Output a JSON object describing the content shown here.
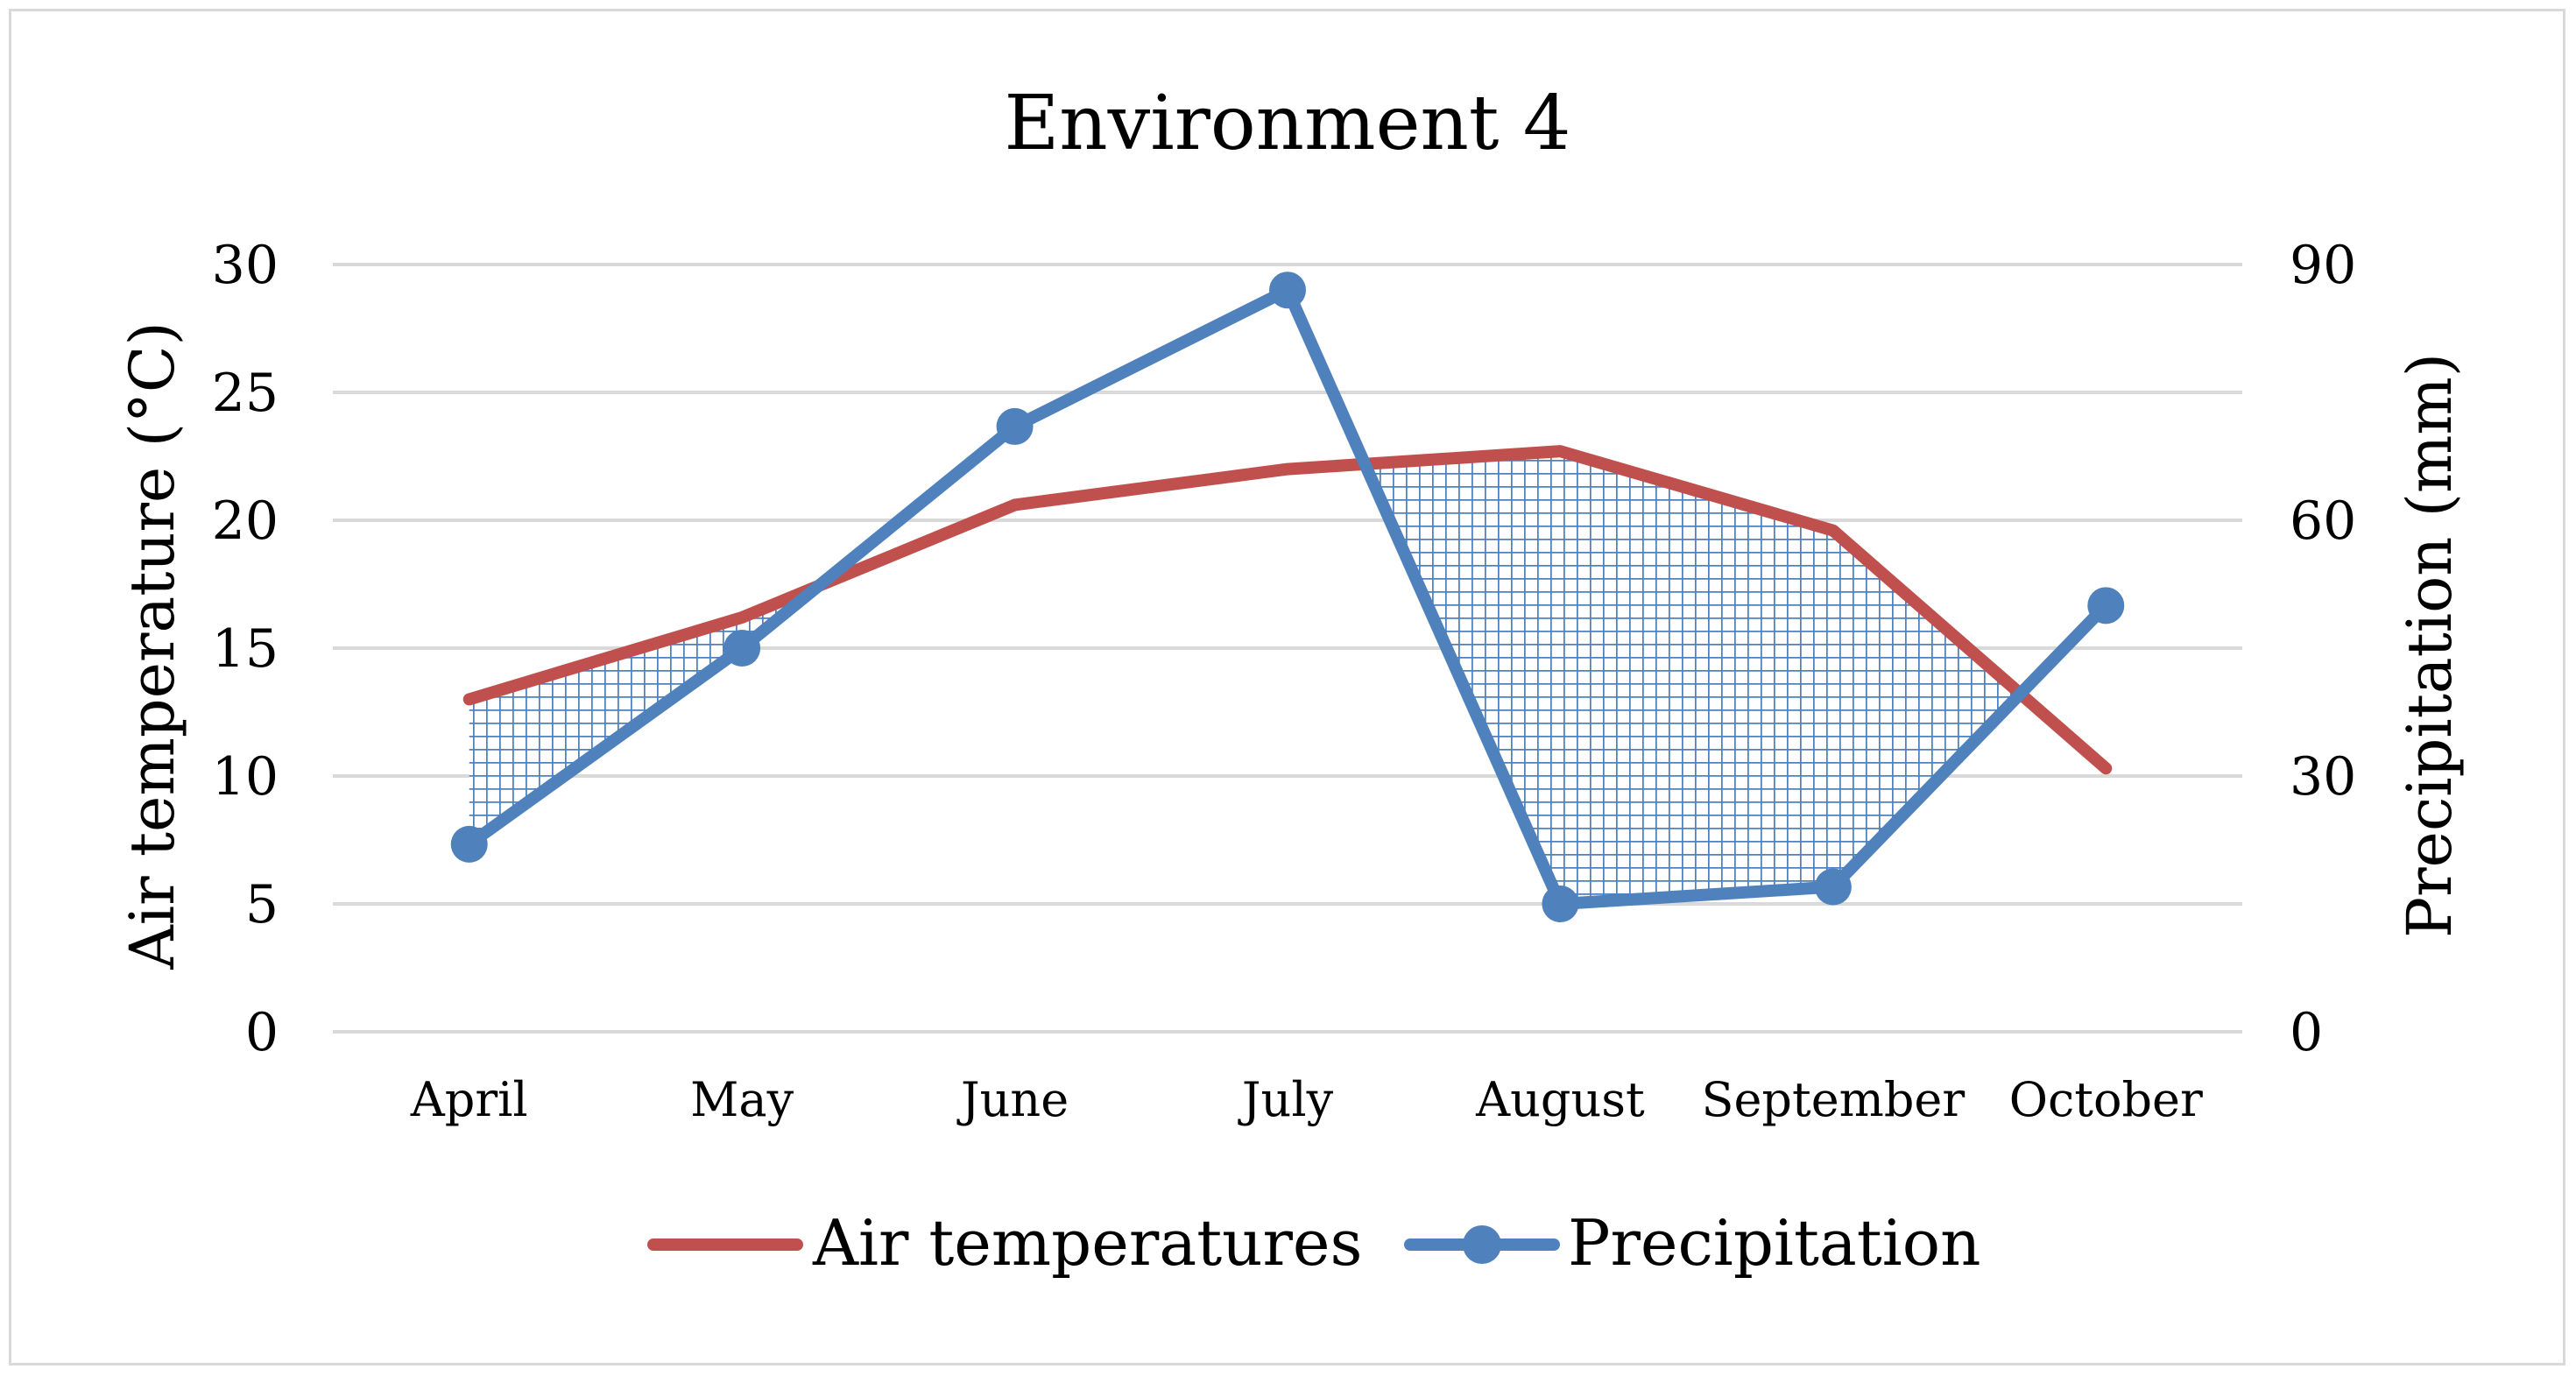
{
  "chart_data": {
    "type": "line",
    "title": "Environment 4",
    "categories": [
      "April",
      "May",
      "June",
      "July",
      "August",
      "September",
      "October"
    ],
    "y_left": {
      "label": "Air temperature (°C)",
      "lim": [
        0,
        30
      ],
      "ticks": [
        0,
        5,
        10,
        15,
        20,
        25,
        30
      ]
    },
    "y_right": {
      "label": "Precipitation (mm)",
      "lim": [
        0,
        90
      ],
      "ticks": [
        0,
        30,
        60,
        90
      ]
    },
    "grid": true,
    "legend_position": "bottom",
    "series": [
      {
        "name": "Air temperatures",
        "axis": "left",
        "color": "#c0504d",
        "marker": "none",
        "values": [
          13.0,
          16.2,
          20.6,
          22.0,
          22.7,
          19.6,
          10.3
        ]
      },
      {
        "name": "Precipitation",
        "axis": "right",
        "color": "#4f81bd",
        "marker": "circle",
        "values": [
          22,
          45,
          71,
          87,
          15,
          17,
          50
        ]
      }
    ],
    "annotations": [
      {
        "type": "hatched-region",
        "description": "crosshatched area between the temperature line (above) and the precipitation line (below), July–October",
        "color": "#4f81bd"
      }
    ]
  }
}
